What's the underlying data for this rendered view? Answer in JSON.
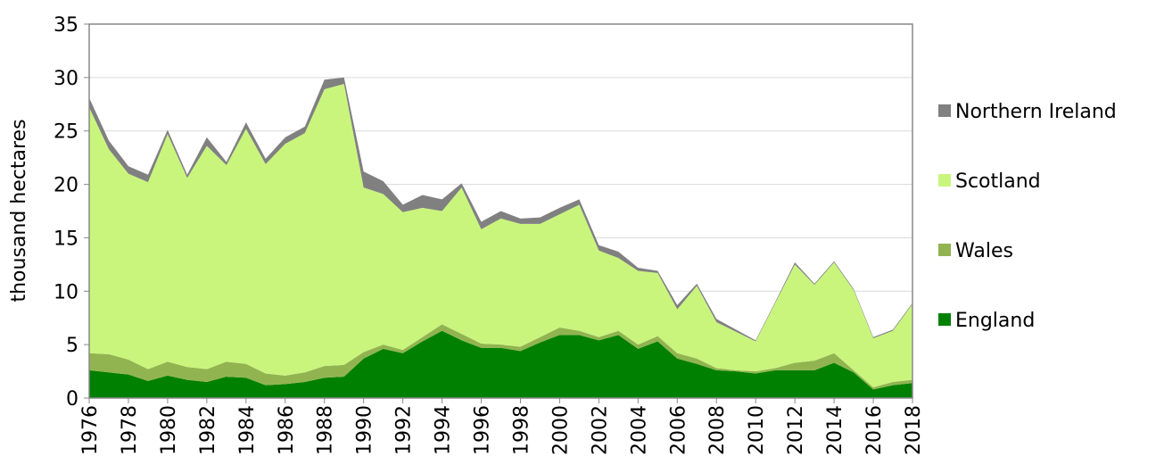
{
  "chart_data": {
    "type": "stacked_area",
    "y_label": "thousand hectares",
    "x": [
      1976,
      1977,
      1978,
      1979,
      1980,
      1981,
      1982,
      1983,
      1984,
      1985,
      1986,
      1987,
      1988,
      1989,
      1990,
      1991,
      1992,
      1993,
      1994,
      1995,
      1996,
      1997,
      1998,
      1999,
      2000,
      2001,
      2002,
      2003,
      2004,
      2005,
      2006,
      2007,
      2008,
      2009,
      2010,
      2011,
      2012,
      2013,
      2014,
      2015,
      2016,
      2017,
      2018
    ],
    "xlim": [
      1976,
      2018
    ],
    "xticks": [
      1976,
      1978,
      1980,
      1982,
      1984,
      1986,
      1988,
      1990,
      1992,
      1994,
      1996,
      1998,
      2000,
      2002,
      2004,
      2006,
      2008,
      2010,
      2012,
      2014,
      2016,
      2018
    ],
    "ylim": [
      0,
      35
    ],
    "yticks": [
      0,
      5,
      10,
      15,
      20,
      25,
      30,
      35
    ],
    "grid": true,
    "legend": "right",
    "series": [
      {
        "name": "England",
        "color": "#008000",
        "values": [
          2.6,
          2.4,
          2.2,
          1.6,
          2.1,
          1.7,
          1.5,
          2.0,
          1.9,
          1.2,
          1.3,
          1.5,
          1.9,
          2.0,
          3.7,
          4.6,
          4.2,
          5.3,
          6.3,
          5.4,
          4.7,
          4.7,
          4.4,
          5.2,
          5.9,
          5.9,
          5.4,
          5.9,
          4.6,
          5.3,
          3.7,
          3.2,
          2.6,
          2.5,
          2.3,
          2.6,
          2.6,
          2.6,
          3.3,
          2.4,
          0.8,
          1.2,
          1.4
        ]
      },
      {
        "name": "Wales",
        "color": "#92b450",
        "values": [
          1.6,
          1.7,
          1.4,
          1.1,
          1.3,
          1.2,
          1.2,
          1.4,
          1.3,
          1.1,
          0.8,
          0.9,
          1.1,
          1.1,
          0.6,
          0.4,
          0.3,
          0.4,
          0.6,
          0.6,
          0.4,
          0.3,
          0.4,
          0.5,
          0.7,
          0.4,
          0.3,
          0.4,
          0.4,
          0.5,
          0.5,
          0.5,
          0.2,
          0.1,
          0.2,
          0.2,
          0.7,
          0.9,
          0.9,
          0.2,
          0.2,
          0.3,
          0.3
        ]
      },
      {
        "name": "Scotland",
        "color": "#c9f57d",
        "values": [
          23.0,
          19.2,
          17.4,
          17.5,
          21.3,
          17.7,
          20.9,
          18.4,
          22.0,
          19.6,
          21.7,
          22.4,
          25.9,
          26.3,
          15.4,
          14.1,
          12.9,
          12.1,
          10.6,
          13.7,
          10.7,
          11.8,
          11.5,
          10.6,
          10.6,
          11.8,
          8.1,
          6.8,
          6.9,
          5.9,
          4.1,
          6.8,
          4.3,
          3.6,
          2.8,
          6.1,
          9.2,
          7.1,
          8.5,
          7.5,
          4.6,
          4.8,
          7.1
        ]
      },
      {
        "name": "Northern Ireland",
        "color": "#808080",
        "values": [
          0.9,
          0.8,
          0.7,
          0.7,
          0.4,
          0.3,
          0.8,
          0.3,
          0.6,
          0.5,
          0.6,
          0.6,
          0.9,
          0.6,
          1.5,
          1.2,
          0.7,
          1.2,
          1.1,
          0.4,
          0.7,
          0.7,
          0.5,
          0.6,
          0.6,
          0.5,
          0.5,
          0.6,
          0.3,
          0.2,
          0.4,
          0.2,
          0.3,
          0.2,
          0.1,
          0.1,
          0.2,
          0.1,
          0.1,
          0.1,
          0.1,
          0.1,
          0.1
        ]
      }
    ]
  }
}
